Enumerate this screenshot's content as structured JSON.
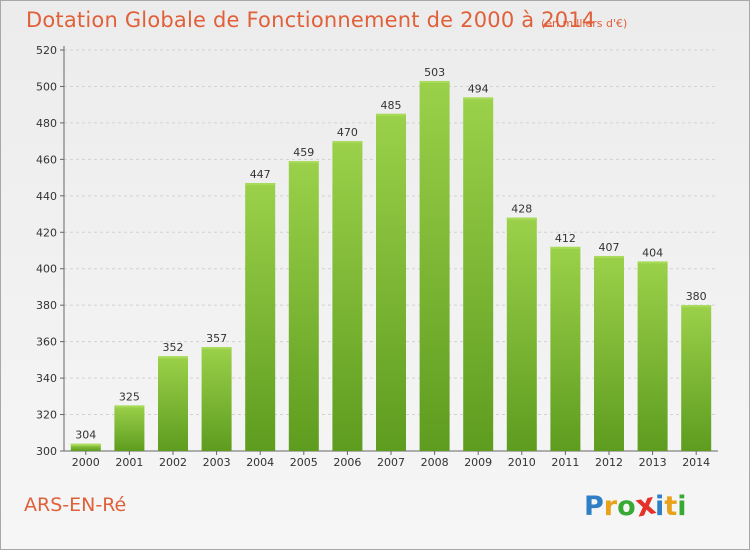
{
  "chart_data": {
    "type": "bar",
    "title": "Dotation Globale de Fonctionnement de 2000 à 2014",
    "subtitle": "(en milliers d'€)",
    "categories": [
      "2000",
      "2001",
      "2002",
      "2003",
      "2004",
      "2005",
      "2006",
      "2007",
      "2008",
      "2009",
      "2010",
      "2011",
      "2012",
      "2013",
      "2014"
    ],
    "values": [
      304,
      325,
      352,
      357,
      447,
      459,
      470,
      485,
      503,
      494,
      428,
      412,
      407,
      404,
      380
    ],
    "ylim": [
      300,
      520
    ],
    "yticks": [
      300,
      320,
      340,
      360,
      380,
      400,
      420,
      440,
      460,
      480,
      500,
      520
    ],
    "grid": true,
    "bar_color": "#7cba2e",
    "bar_color_light": "#9bd14a",
    "bar_color_dark": "#5c9a1e"
  },
  "footer": {
    "place": "ARS-EN-Ré",
    "brand": [
      "P",
      "r",
      "o",
      "x",
      "i",
      "t",
      "i"
    ],
    "brand_colors": [
      "#2f7fc6",
      "#e8a21b",
      "#39a935",
      "#e4322b",
      "#2f7fc6",
      "#e8a21b",
      "#39a935"
    ]
  }
}
